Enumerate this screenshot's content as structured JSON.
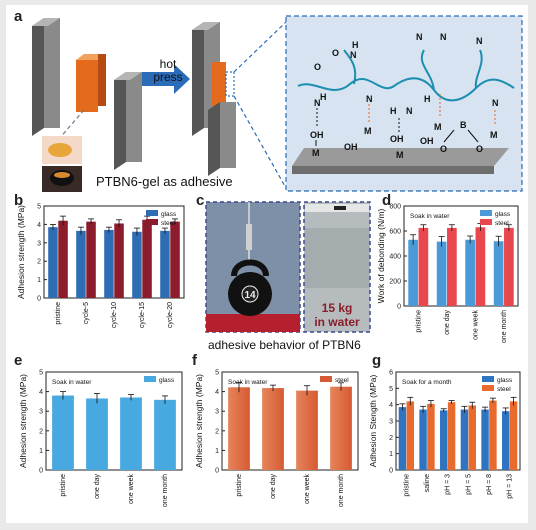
{
  "panel_letters": {
    "a": "a",
    "b": "b",
    "c": "c",
    "d": "d",
    "e": "e",
    "f": "f",
    "g": "g"
  },
  "panel_a": {
    "hot_press_line1": "hot",
    "hot_press_line2": "press",
    "caption": "PTBN6-gel as adhesive",
    "chem_labels": {
      "oh": "OH",
      "m": "M",
      "n": "N",
      "h": "H",
      "o": "O",
      "b": "B"
    }
  },
  "panel_c": {
    "load_label_line1": "15 kg",
    "load_label_line2": "in water",
    "kettlebell_number": "14",
    "caption": "adhesive behavior of PTBN6"
  },
  "colors": {
    "glass": "#2e6db4",
    "steel": "#8b1c2c",
    "glass_light": "#4a9ad8",
    "steel_light": "#e8474e",
    "e_bar": "#47a9e0",
    "f_bar": "#e6855a",
    "f_bar2": "#d65a33",
    "g_glass": "#2f74c0",
    "g_steel": "#e86a2c"
  },
  "chart_data": [
    {
      "id": "b",
      "type": "bar",
      "ylabel": "Adhesion strength (MPa)",
      "categories": [
        "pristine",
        "cycle-5",
        "cycle-10",
        "cycle-15",
        "cycle-20"
      ],
      "ylim": [
        0,
        5
      ],
      "yticks": [
        "0",
        "1",
        "2",
        "3",
        "4",
        "5"
      ],
      "legend": [
        "glass",
        "steel"
      ],
      "series": [
        {
          "name": "glass",
          "values": [
            3.85,
            3.65,
            3.7,
            3.6,
            3.65
          ],
          "errors": [
            0.15,
            0.2,
            0.15,
            0.2,
            0.15
          ]
        },
        {
          "name": "steel",
          "values": [
            4.2,
            4.15,
            4.05,
            4.25,
            4.15
          ],
          "errors": [
            0.25,
            0.15,
            0.2,
            0.2,
            0.15
          ]
        }
      ]
    },
    {
      "id": "d",
      "type": "bar",
      "title": "Soak in water",
      "ylabel": "Work of debonding (N/m)",
      "categories": [
        "pristine",
        "one day",
        "one week",
        "one month"
      ],
      "ylim": [
        0,
        800
      ],
      "yticks": [
        "0",
        "200",
        "400",
        "600",
        "800"
      ],
      "legend": [
        "glass",
        "steel"
      ],
      "series": [
        {
          "name": "glass",
          "values": [
            530,
            515,
            530,
            518
          ],
          "errors": [
            40,
            40,
            30,
            40
          ]
        },
        {
          "name": "steel",
          "values": [
            625,
            625,
            630,
            625
          ],
          "errors": [
            25,
            25,
            30,
            25
          ]
        }
      ]
    },
    {
      "id": "e",
      "type": "bar",
      "title": "Soak in water",
      "ylabel": "Adhesion strength (MPa)",
      "categories": [
        "pristine",
        "one day",
        "one week",
        "one month"
      ],
      "ylim": [
        0,
        5
      ],
      "yticks": [
        "0",
        "1",
        "2",
        "3",
        "4",
        "5"
      ],
      "legend": [
        "glass"
      ],
      "series": [
        {
          "name": "glass",
          "values": [
            3.8,
            3.65,
            3.7,
            3.58
          ],
          "errors": [
            0.2,
            0.25,
            0.15,
            0.2
          ]
        }
      ]
    },
    {
      "id": "f",
      "type": "bar",
      "title": "Soak in water",
      "ylabel": "Adhesion strength (MPa)",
      "categories": [
        "pristine",
        "one day",
        "one week",
        "one month"
      ],
      "ylim": [
        0,
        5
      ],
      "yticks": [
        "0",
        "1",
        "2",
        "3",
        "4",
        "5"
      ],
      "legend": [
        "steel"
      ],
      "series": [
        {
          "name": "steel",
          "values": [
            4.22,
            4.18,
            4.05,
            4.25
          ],
          "errors": [
            0.25,
            0.15,
            0.25,
            0.2
          ]
        }
      ]
    },
    {
      "id": "g",
      "type": "bar",
      "title": "Soak for a month",
      "ylabel": "Adhesion Stength (MPa)",
      "categories": [
        "pristine",
        "saline",
        "pH = 3",
        "pH = 5",
        "pH = 8",
        "pH = 13"
      ],
      "ylim": [
        0,
        6
      ],
      "yticks": [
        "0",
        "1",
        "2",
        "3",
        "4",
        "5",
        "6"
      ],
      "legend": [
        "glass",
        "steel"
      ],
      "series": [
        {
          "name": "glass",
          "values": [
            3.85,
            3.7,
            3.65,
            3.7,
            3.7,
            3.6
          ],
          "errors": [
            0.2,
            0.2,
            0.1,
            0.2,
            0.15,
            0.2
          ]
        },
        {
          "name": "steel",
          "values": [
            4.2,
            4.05,
            4.15,
            3.95,
            4.25,
            4.2
          ],
          "errors": [
            0.25,
            0.2,
            0.1,
            0.2,
            0.15,
            0.25
          ]
        }
      ]
    }
  ]
}
